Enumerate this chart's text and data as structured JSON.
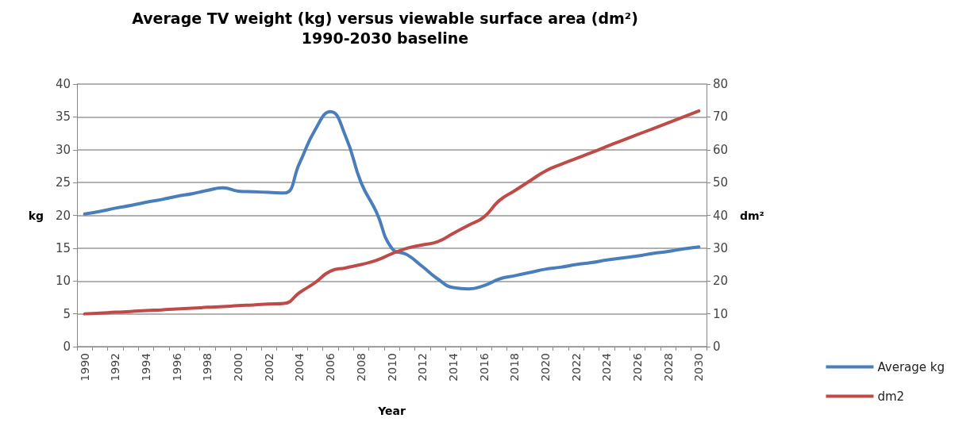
{
  "chart_data": {
    "type": "line",
    "title": "Average TV weight (kg) versus viewable surface area (dm²)",
    "subtitle": "1990-2030 baseline",
    "xlabel": "Year",
    "ylabel": "kg",
    "y2label": "dm²",
    "categories": [
      "1990",
      null,
      "1992",
      null,
      "1994",
      null,
      "1996",
      null,
      "1998",
      null,
      "2000",
      null,
      "2002",
      null,
      "2004",
      null,
      "2006",
      null,
      "2008",
      null,
      "2010",
      null,
      "2012",
      null,
      "2014",
      null,
      "2016",
      null,
      "2018",
      null,
      "2020",
      null,
      "2022",
      null,
      "2024",
      null,
      "2026",
      null,
      "2028",
      null,
      "2030"
    ],
    "series": [
      {
        "name": "Average kg",
        "color": "#4a7ebb",
        "values": [
          20.2,
          20.6,
          21.1,
          21.5,
          22.0,
          22.4,
          22.9,
          23.3,
          23.8,
          24.2,
          23.7,
          23.6,
          23.5,
          23.4,
          28,
          33,
          35.8,
          32,
          25,
          20.5,
          15,
          14,
          12.2,
          10.3,
          9,
          8.8,
          9.3,
          10.3,
          10.8,
          11.3,
          11.8,
          12.1,
          12.5,
          12.8,
          13.2,
          13.5,
          13.8,
          14.2,
          14.5,
          14.9,
          15.2
        ]
      },
      {
        "name": "dm2",
        "color": "#be4b48",
        "axis": "y2",
        "values": [
          10,
          10.2,
          10.5,
          10.7,
          11.0,
          11.2,
          11.5,
          11.7,
          12.0,
          12.2,
          12.5,
          12.7,
          13.0,
          13.2,
          16.5,
          19.5,
          23,
          24,
          25,
          26.3,
          28.3,
          30,
          31,
          32,
          34.5,
          37,
          39.5,
          44.5,
          47.5,
          50.5,
          53.5,
          55.5,
          57.3,
          59.1,
          61.0,
          62.8,
          64.6,
          66.4,
          68.2,
          70.0,
          71.8
        ]
      }
    ],
    "ylim": [
      0,
      40
    ],
    "yticks": [
      0,
      5,
      10,
      15,
      20,
      25,
      30,
      35,
      40
    ],
    "y2lim": [
      0,
      80
    ],
    "y2ticks": [
      0,
      10,
      20,
      30,
      40,
      50,
      60,
      70,
      80
    ],
    "grid": "y",
    "legend": "bottom right",
    "marker": "none",
    "line_style": "solid"
  }
}
